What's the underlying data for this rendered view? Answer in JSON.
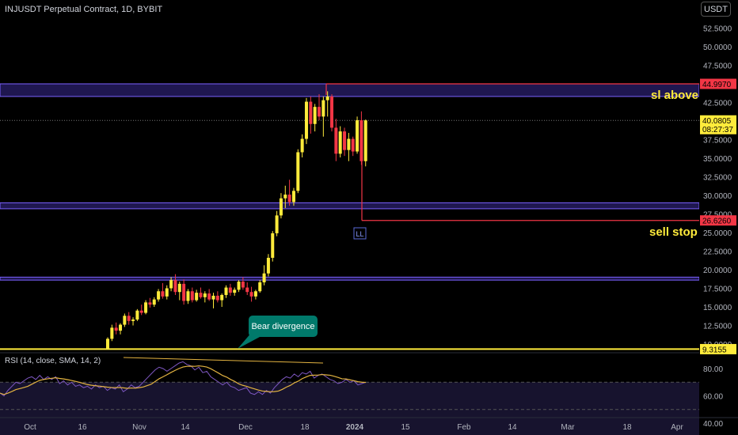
{
  "symbol_title": "INJUSDT Perpetual Contract, 1D, BYBIT",
  "currency": "USDT",
  "rsi_legend": "RSI (14, close, SMA, 14, 2)",
  "colors": {
    "background": "#000000",
    "bull": "#ffeb3b",
    "bear": "#f23645",
    "zone_fill": "#2a1f6b",
    "zone_line": "#7b61ff",
    "level_line": "#f23645",
    "support_line": "#ffeb3b",
    "rsi_line": "#7e57c2",
    "rsi_ma": "#e3b341",
    "callout_bg": "#00796b",
    "axis_text": "#b2b5be"
  },
  "chart_data": {
    "type": "candlestick",
    "price_axis_ticks": [
      "52.5000",
      "50.0000",
      "47.5000",
      "45.0000",
      "42.5000",
      "40.0000",
      "37.5000",
      "35.0000",
      "32.5000",
      "30.0000",
      "27.5000",
      "25.0000",
      "22.5000",
      "20.0000",
      "17.5000",
      "15.0000",
      "12.5000",
      "10.0000"
    ],
    "price_labels": [
      {
        "name": "sl-level",
        "value": "44.9970",
        "style": "red"
      },
      {
        "name": "last-price",
        "value": "40.0805",
        "countdown": "08:27:37",
        "style": "yellow"
      },
      {
        "name": "sell-stop-level",
        "value": "26.6260",
        "style": "red"
      },
      {
        "name": "support-level",
        "value": "9.3155",
        "style": "yellow"
      }
    ],
    "time_axis": [
      "Oct",
      "16",
      "Nov",
      "14",
      "Dec",
      "18",
      "2024",
      "15",
      "Feb",
      "14",
      "Mar",
      "18",
      "Apr"
    ],
    "rsi_axis_ticks": [
      "80.00",
      "60.00",
      "40.00"
    ],
    "annotations": [
      {
        "name": "sl-above",
        "text": "sl above"
      },
      {
        "name": "sell-stop",
        "text": "sell stop"
      },
      {
        "name": "ll-marker",
        "text": "LL"
      },
      {
        "name": "bear-divergence",
        "text": "Bear divergence"
      }
    ],
    "zones": [
      {
        "name": "resistance-zone",
        "from": 43.3,
        "to": 45.0
      },
      {
        "name": "mid-zone",
        "from": 28.2,
        "to": 29.0
      },
      {
        "name": "support-zone",
        "from": 18.6,
        "to": 19.0
      }
    ],
    "candles": [
      {
        "o": 9.4,
        "h": 10.9,
        "l": 9.3,
        "c": 10.7
      },
      {
        "o": 10.7,
        "h": 12.6,
        "l": 10.4,
        "c": 12.2
      },
      {
        "o": 12.2,
        "h": 12.9,
        "l": 11.3,
        "c": 11.8
      },
      {
        "o": 11.8,
        "h": 12.8,
        "l": 11.3,
        "c": 12.6
      },
      {
        "o": 12.6,
        "h": 14.1,
        "l": 12.3,
        "c": 13.8
      },
      {
        "o": 13.8,
        "h": 14.3,
        "l": 12.6,
        "c": 13.1
      },
      {
        "o": 13.1,
        "h": 13.6,
        "l": 12.5,
        "c": 13.3
      },
      {
        "o": 13.3,
        "h": 14.7,
        "l": 13.1,
        "c": 14.5
      },
      {
        "o": 14.5,
        "h": 15.3,
        "l": 13.9,
        "c": 14.2
      },
      {
        "o": 14.2,
        "h": 15.9,
        "l": 14.0,
        "c": 15.6
      },
      {
        "o": 15.6,
        "h": 16.2,
        "l": 14.9,
        "c": 15.3
      },
      {
        "o": 15.3,
        "h": 16.3,
        "l": 15.0,
        "c": 16.0
      },
      {
        "o": 16.0,
        "h": 17.4,
        "l": 15.7,
        "c": 17.1
      },
      {
        "o": 17.1,
        "h": 18.2,
        "l": 16.1,
        "c": 16.4
      },
      {
        "o": 16.4,
        "h": 17.9,
        "l": 16.0,
        "c": 17.5
      },
      {
        "o": 17.5,
        "h": 19.0,
        "l": 17.1,
        "c": 18.6
      },
      {
        "o": 18.6,
        "h": 19.4,
        "l": 16.6,
        "c": 17.0
      },
      {
        "o": 17.0,
        "h": 18.4,
        "l": 15.9,
        "c": 18.1
      },
      {
        "o": 18.1,
        "h": 18.7,
        "l": 15.3,
        "c": 15.8
      },
      {
        "o": 15.8,
        "h": 17.4,
        "l": 15.4,
        "c": 17.1
      },
      {
        "o": 17.1,
        "h": 17.6,
        "l": 15.6,
        "c": 15.9
      },
      {
        "o": 15.9,
        "h": 17.3,
        "l": 15.7,
        "c": 16.9
      },
      {
        "o": 16.9,
        "h": 17.6,
        "l": 16.1,
        "c": 16.3
      },
      {
        "o": 16.3,
        "h": 17.1,
        "l": 15.6,
        "c": 16.8
      },
      {
        "o": 16.8,
        "h": 17.4,
        "l": 15.8,
        "c": 16.0
      },
      {
        "o": 16.0,
        "h": 16.9,
        "l": 14.8,
        "c": 16.5
      },
      {
        "o": 16.5,
        "h": 17.1,
        "l": 15.6,
        "c": 15.9
      },
      {
        "o": 15.9,
        "h": 16.8,
        "l": 15.0,
        "c": 16.6
      },
      {
        "o": 16.6,
        "h": 17.9,
        "l": 16.2,
        "c": 17.6
      },
      {
        "o": 17.6,
        "h": 18.1,
        "l": 16.5,
        "c": 16.9
      },
      {
        "o": 16.9,
        "h": 17.6,
        "l": 16.5,
        "c": 17.3
      },
      {
        "o": 17.3,
        "h": 18.6,
        "l": 17.0,
        "c": 18.4
      },
      {
        "o": 18.4,
        "h": 19.0,
        "l": 17.3,
        "c": 17.6
      },
      {
        "o": 17.6,
        "h": 18.3,
        "l": 16.6,
        "c": 17.0
      },
      {
        "o": 17.0,
        "h": 17.7,
        "l": 15.7,
        "c": 16.4
      },
      {
        "o": 16.4,
        "h": 17.3,
        "l": 16.0,
        "c": 17.1
      },
      {
        "o": 17.1,
        "h": 18.6,
        "l": 16.9,
        "c": 18.3
      },
      {
        "o": 18.3,
        "h": 20.6,
        "l": 17.9,
        "c": 19.5
      },
      {
        "o": 19.5,
        "h": 22.1,
        "l": 19.1,
        "c": 21.6
      },
      {
        "o": 21.6,
        "h": 25.2,
        "l": 21.1,
        "c": 24.9
      },
      {
        "o": 24.9,
        "h": 27.9,
        "l": 24.5,
        "c": 27.3
      },
      {
        "o": 27.3,
        "h": 30.3,
        "l": 26.9,
        "c": 29.6
      },
      {
        "o": 29.6,
        "h": 31.3,
        "l": 28.3,
        "c": 30.1
      },
      {
        "o": 30.1,
        "h": 32.1,
        "l": 28.6,
        "c": 29.1
      },
      {
        "o": 29.1,
        "h": 31.0,
        "l": 28.6,
        "c": 30.6
      },
      {
        "o": 30.6,
        "h": 36.2,
        "l": 30.3,
        "c": 35.8
      },
      {
        "o": 35.8,
        "h": 38.2,
        "l": 35.1,
        "c": 37.6
      },
      {
        "o": 37.6,
        "h": 43.1,
        "l": 36.9,
        "c": 42.6
      },
      {
        "o": 42.6,
        "h": 43.3,
        "l": 38.3,
        "c": 39.6
      },
      {
        "o": 39.6,
        "h": 42.3,
        "l": 38.6,
        "c": 41.9
      },
      {
        "o": 41.9,
        "h": 43.6,
        "l": 40.1,
        "c": 40.6
      },
      {
        "o": 40.6,
        "h": 43.3,
        "l": 37.9,
        "c": 42.8
      },
      {
        "o": 42.8,
        "h": 44.0,
        "l": 40.6,
        "c": 43.3
      },
      {
        "o": 43.3,
        "h": 43.6,
        "l": 38.6,
        "c": 39.1
      },
      {
        "o": 39.1,
        "h": 40.3,
        "l": 34.6,
        "c": 35.6
      },
      {
        "o": 35.6,
        "h": 39.3,
        "l": 35.1,
        "c": 38.6
      },
      {
        "o": 38.6,
        "h": 39.1,
        "l": 35.3,
        "c": 36.1
      },
      {
        "o": 36.1,
        "h": 38.4,
        "l": 34.6,
        "c": 37.6
      },
      {
        "o": 37.6,
        "h": 37.9,
        "l": 35.3,
        "c": 35.9
      },
      {
        "o": 35.9,
        "h": 40.6,
        "l": 35.6,
        "c": 40.1
      },
      {
        "o": 40.1,
        "h": 41.3,
        "l": 34.1,
        "c": 34.6
      },
      {
        "o": 34.6,
        "h": 40.2,
        "l": 33.9,
        "c": 40.08
      }
    ],
    "rsi": [
      62,
      60,
      64,
      67,
      70,
      69,
      71,
      73,
      74,
      72,
      75,
      72,
      74,
      72,
      74,
      69,
      71,
      68,
      70,
      67,
      68,
      66,
      67,
      65,
      68,
      66,
      67,
      64,
      66,
      65,
      68,
      63,
      65,
      68,
      66,
      67,
      70,
      73,
      76,
      79,
      81,
      80,
      78,
      80,
      82,
      84,
      85,
      83,
      82,
      79,
      81,
      77,
      78,
      74,
      72,
      70,
      68,
      70,
      67,
      66,
      64,
      65,
      66,
      62,
      61,
      63,
      61,
      64,
      62,
      66,
      69,
      72,
      74,
      73,
      76,
      74,
      77,
      76,
      78,
      73,
      75,
      76,
      74,
      72,
      71,
      69,
      70,
      72,
      70,
      71,
      68,
      69,
      70
    ]
  }
}
